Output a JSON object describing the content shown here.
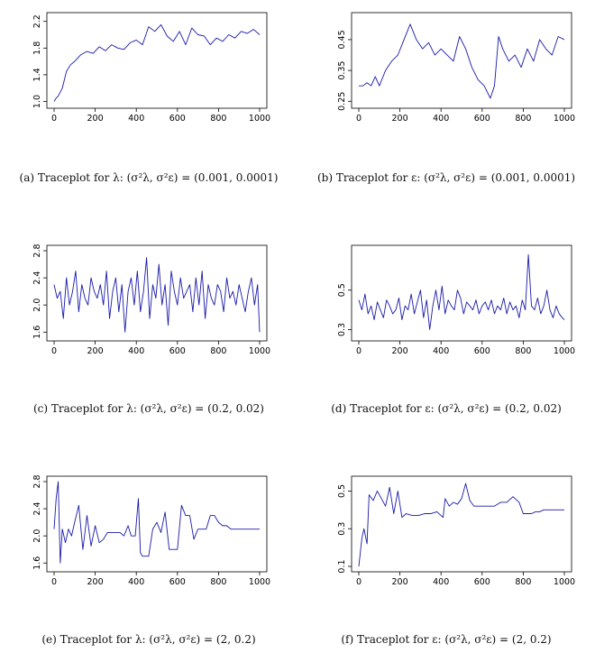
{
  "captions": [
    "(a) Traceplot for λ: (σ²λ, σ²ε) = (0.001, 0.0001)",
    "(b) Traceplot for ε: (σ²λ, σ²ε) = (0.001, 0.0001)",
    "(c) Traceplot for λ: (σ²λ, σ²ε) = (0.2, 0.02)",
    "(d) Traceplot for ε: (σ²λ, σ²ε) = (0.2, 0.02)",
    "(e) Traceplot for λ: (σ²λ, σ²ε) = (2, 0.2)",
    "(f) Traceplot for ε: (σ²λ, σ²ε) = (2, 0.2)"
  ],
  "series_color": "#1a1aa8",
  "chart_data": [
    {
      "type": "line",
      "xlim": [
        0,
        1000
      ],
      "ylim": [
        0.98,
        2.25
      ],
      "x_ticks": [
        "0",
        "200",
        "400",
        "600",
        "800",
        "1000"
      ],
      "y_ticks": [
        "1.0",
        "1.4",
        "1.8",
        "2.2"
      ],
      "series": [
        {
          "x": [
            0,
            10,
            20,
            40,
            60,
            80,
            100,
            130,
            160,
            190,
            220,
            250,
            280,
            310,
            340,
            370,
            400,
            430,
            460,
            490,
            520,
            550,
            580,
            610,
            640,
            670,
            700,
            730,
            760,
            790,
            820,
            850,
            880,
            910,
            940,
            970,
            1000
          ],
          "values": [
            1.0,
            1.05,
            1.08,
            1.2,
            1.45,
            1.55,
            1.6,
            1.7,
            1.75,
            1.72,
            1.82,
            1.76,
            1.85,
            1.8,
            1.78,
            1.88,
            1.92,
            1.85,
            2.12,
            2.05,
            2.15,
            1.98,
            1.9,
            2.05,
            1.85,
            2.1,
            2.0,
            1.98,
            1.85,
            1.95,
            1.9,
            2.0,
            1.95,
            2.05,
            2.02,
            2.08,
            2.0
          ]
        }
      ]
    },
    {
      "type": "line",
      "xlim": [
        0,
        1000
      ],
      "ylim": [
        0.245,
        0.52
      ],
      "x_ticks": [
        "0",
        "200",
        "400",
        "600",
        "800",
        "1000"
      ],
      "y_ticks": [
        "0.25",
        "0.35",
        "0.45"
      ],
      "series": [
        {
          "x": [
            0,
            20,
            40,
            60,
            80,
            100,
            130,
            160,
            190,
            220,
            250,
            280,
            310,
            340,
            370,
            400,
            430,
            460,
            490,
            520,
            550,
            580,
            610,
            640,
            660,
            680,
            700,
            730,
            760,
            790,
            820,
            850,
            880,
            910,
            940,
            970,
            1000
          ],
          "values": [
            0.3,
            0.3,
            0.31,
            0.3,
            0.33,
            0.3,
            0.35,
            0.38,
            0.4,
            0.45,
            0.5,
            0.45,
            0.42,
            0.44,
            0.4,
            0.42,
            0.4,
            0.38,
            0.46,
            0.42,
            0.36,
            0.32,
            0.3,
            0.26,
            0.3,
            0.46,
            0.42,
            0.38,
            0.4,
            0.36,
            0.42,
            0.38,
            0.45,
            0.42,
            0.4,
            0.46,
            0.45
          ]
        }
      ]
    },
    {
      "type": "line",
      "xlim": [
        0,
        1000
      ],
      "ylim": [
        1.55,
        2.8
      ],
      "x_ticks": [
        "0",
        "200",
        "400",
        "600",
        "800",
        "1000"
      ],
      "y_ticks": [
        "1.6",
        "2.0",
        "2.4",
        "2.8"
      ],
      "series": [
        {
          "x": [
            0,
            15,
            30,
            45,
            60,
            75,
            90,
            105,
            120,
            135,
            150,
            165,
            180,
            195,
            210,
            225,
            240,
            255,
            270,
            285,
            300,
            315,
            330,
            345,
            360,
            375,
            390,
            405,
            420,
            435,
            450,
            465,
            480,
            495,
            510,
            525,
            540,
            555,
            570,
            585,
            600,
            615,
            630,
            645,
            660,
            675,
            690,
            705,
            720,
            735,
            750,
            765,
            780,
            795,
            810,
            825,
            840,
            855,
            870,
            885,
            900,
            915,
            930,
            945,
            960,
            975,
            990,
            1000
          ],
          "values": [
            2.3,
            2.1,
            2.2,
            1.8,
            2.4,
            2.0,
            2.2,
            2.5,
            1.9,
            2.3,
            2.1,
            2.0,
            2.4,
            2.2,
            2.1,
            2.3,
            2.0,
            2.5,
            1.8,
            2.2,
            2.4,
            1.9,
            2.3,
            1.6,
            2.2,
            2.4,
            2.0,
            2.5,
            1.9,
            2.2,
            2.7,
            1.8,
            2.3,
            2.1,
            2.6,
            2.0,
            2.3,
            1.7,
            2.5,
            2.2,
            2.0,
            2.4,
            2.1,
            2.2,
            2.3,
            1.9,
            2.4,
            2.0,
            2.5,
            1.8,
            2.3,
            2.1,
            2.0,
            2.3,
            2.2,
            1.9,
            2.4,
            2.1,
            2.2,
            2.0,
            2.3,
            2.1,
            1.9,
            2.2,
            2.4,
            2.0,
            2.3,
            1.6
          ]
        }
      ]
    },
    {
      "type": "line",
      "xlim": [
        0,
        1000
      ],
      "ylim": [
        0.27,
        0.7
      ],
      "x_ticks": [
        "0",
        "200",
        "400",
        "600",
        "800",
        "1000"
      ],
      "y_ticks": [
        "0.3",
        "0.5"
      ],
      "series": [
        {
          "x": [
            0,
            15,
            30,
            45,
            60,
            75,
            90,
            105,
            120,
            135,
            150,
            165,
            180,
            195,
            210,
            225,
            240,
            255,
            270,
            285,
            300,
            315,
            330,
            345,
            360,
            375,
            390,
            405,
            420,
            435,
            450,
            465,
            480,
            495,
            510,
            525,
            540,
            555,
            570,
            585,
            600,
            615,
            630,
            645,
            660,
            675,
            690,
            705,
            720,
            735,
            750,
            765,
            780,
            795,
            810,
            825,
            840,
            855,
            870,
            885,
            900,
            915,
            930,
            945,
            960,
            975,
            990,
            1000
          ],
          "values": [
            0.45,
            0.4,
            0.48,
            0.38,
            0.42,
            0.35,
            0.44,
            0.4,
            0.36,
            0.45,
            0.42,
            0.38,
            0.4,
            0.46,
            0.35,
            0.42,
            0.4,
            0.48,
            0.38,
            0.44,
            0.5,
            0.36,
            0.45,
            0.3,
            0.42,
            0.5,
            0.4,
            0.52,
            0.38,
            0.45,
            0.42,
            0.4,
            0.5,
            0.46,
            0.38,
            0.44,
            0.42,
            0.4,
            0.45,
            0.38,
            0.42,
            0.44,
            0.4,
            0.45,
            0.38,
            0.42,
            0.4,
            0.46,
            0.38,
            0.44,
            0.4,
            0.42,
            0.36,
            0.45,
            0.4,
            0.68,
            0.42,
            0.4,
            0.46,
            0.38,
            0.42,
            0.5,
            0.4,
            0.36,
            0.42,
            0.38,
            0.36,
            0.35
          ]
        }
      ]
    },
    {
      "type": "line",
      "xlim": [
        0,
        1000
      ],
      "ylim": [
        1.55,
        2.8
      ],
      "x_ticks": [
        "0",
        "200",
        "400",
        "600",
        "800",
        "1000"
      ],
      "y_ticks": [
        "1.6",
        "2.0",
        "2.4",
        "2.8"
      ],
      "series": [
        {
          "x": [
            0,
            10,
            20,
            30,
            40,
            55,
            70,
            85,
            100,
            120,
            140,
            160,
            180,
            200,
            220,
            240,
            260,
            280,
            300,
            320,
            340,
            360,
            375,
            395,
            410,
            420,
            430,
            460,
            480,
            500,
            520,
            540,
            560,
            580,
            600,
            620,
            640,
            660,
            680,
            700,
            720,
            740,
            760,
            780,
            800,
            820,
            840,
            860,
            880,
            900,
            920,
            940,
            960,
            980,
            1000
          ],
          "values": [
            2.1,
            2.55,
            2.8,
            1.6,
            2.1,
            1.9,
            2.1,
            2.0,
            2.2,
            2.45,
            1.8,
            2.3,
            1.85,
            2.15,
            1.9,
            1.95,
            2.05,
            2.05,
            2.05,
            2.05,
            2.0,
            2.15,
            2.0,
            2.0,
            2.55,
            1.75,
            1.7,
            1.7,
            2.1,
            2.2,
            2.05,
            2.35,
            1.8,
            1.8,
            1.8,
            2.45,
            2.3,
            2.3,
            1.95,
            2.1,
            2.1,
            2.1,
            2.3,
            2.3,
            2.2,
            2.15,
            2.15,
            2.1,
            2.1,
            2.1,
            2.1,
            2.1,
            2.1,
            2.1,
            2.1
          ]
        }
      ]
    },
    {
      "type": "line",
      "xlim": [
        0,
        1000
      ],
      "ylim": [
        0.1,
        0.55
      ],
      "x_ticks": [
        "0",
        "200",
        "400",
        "600",
        "800",
        "1000"
      ],
      "y_ticks": [
        "0.1",
        "0.3",
        "0.5"
      ],
      "series": [
        {
          "x": [
            0,
            15,
            25,
            40,
            50,
            70,
            90,
            110,
            130,
            150,
            170,
            190,
            210,
            230,
            260,
            290,
            320,
            350,
            380,
            410,
            420,
            440,
            460,
            480,
            500,
            520,
            540,
            560,
            580,
            600,
            630,
            660,
            690,
            720,
            750,
            780,
            800,
            820,
            840,
            860,
            880,
            900,
            930,
            960,
            1000
          ],
          "values": [
            0.1,
            0.25,
            0.3,
            0.22,
            0.48,
            0.45,
            0.5,
            0.46,
            0.42,
            0.52,
            0.38,
            0.5,
            0.36,
            0.38,
            0.37,
            0.37,
            0.38,
            0.38,
            0.39,
            0.36,
            0.46,
            0.42,
            0.44,
            0.43,
            0.46,
            0.54,
            0.45,
            0.42,
            0.42,
            0.42,
            0.42,
            0.42,
            0.44,
            0.44,
            0.47,
            0.44,
            0.38,
            0.38,
            0.38,
            0.39,
            0.39,
            0.4,
            0.4,
            0.4,
            0.4
          ]
        }
      ]
    }
  ]
}
